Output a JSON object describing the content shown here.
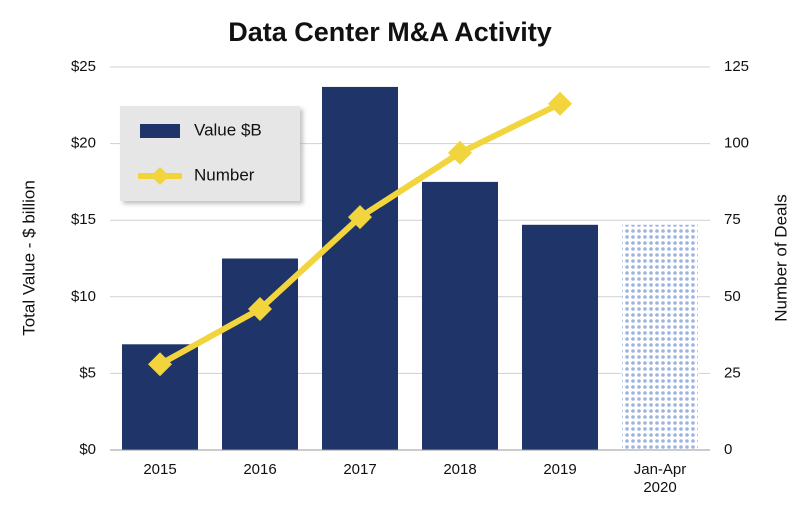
{
  "chart_data": {
    "type": "bar",
    "title": "Data Center M&A Activity",
    "y_label": "Total Value - $ billion",
    "y2_label": "Number of Deals",
    "categories": [
      "2015",
      "2016",
      "2017",
      "2018",
      "2019",
      "Jan-Apr 2020"
    ],
    "series": [
      {
        "name": "Value $B",
        "type": "bar",
        "color": "#1f3468",
        "values": [
          6.9,
          12.5,
          23.7,
          17.5,
          14.7,
          14.7
        ],
        "bar_styles": [
          "solid",
          "solid",
          "solid",
          "solid",
          "solid",
          "dotted"
        ],
        "dotted_color": "#9db4dd"
      },
      {
        "name": "Number",
        "type": "line",
        "axis": "y2",
        "color": "#f2d43d",
        "values": [
          28,
          46,
          76,
          97,
          113,
          null
        ]
      }
    ],
    "ylim": [
      0,
      25
    ],
    "yticks": [
      {
        "value": 0,
        "label": "$0"
      },
      {
        "value": 5,
        "label": "$5"
      },
      {
        "value": 10,
        "label": "$10"
      },
      {
        "value": 15,
        "label": "$15"
      },
      {
        "value": 20,
        "label": "$20"
      },
      {
        "value": 25,
        "label": "$25"
      }
    ],
    "y2lim": [
      0,
      125
    ],
    "y2ticks": [
      0,
      25,
      50,
      75,
      100,
      125
    ],
    "grid": true,
    "legend": "upper left"
  }
}
